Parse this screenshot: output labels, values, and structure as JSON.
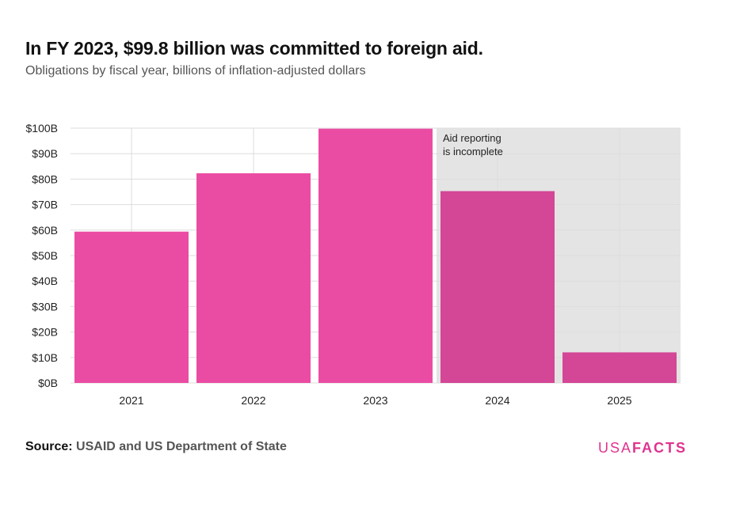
{
  "header": {
    "title": "In FY 2023, $99.8 billion was committed to foreign aid.",
    "subtitle": "Obligations by fiscal year, billions of inflation-adjusted dollars"
  },
  "annotation": {
    "line1": "Aid reporting",
    "line2": "is incomplete"
  },
  "footer": {
    "source_label": "Source:",
    "source_text": "USAID and US Department of State",
    "logo_part1": "USA",
    "logo_part2": "FACTS"
  },
  "colors": {
    "bar_complete": "#eb4ca3",
    "bar_incomplete": "#d44696",
    "incomplete_shade": "#e4e4e4",
    "grid": "#dddddd",
    "brand": "#e0338f"
  },
  "chart_data": {
    "type": "bar",
    "categories": [
      "2021",
      "2022",
      "2023",
      "2024",
      "2025"
    ],
    "values": [
      59.4,
      82.3,
      99.8,
      75.3,
      12.0
    ],
    "incomplete_from": "2024",
    "ylim": [
      0,
      100
    ],
    "yticks": [
      0,
      10,
      20,
      30,
      40,
      50,
      60,
      70,
      80,
      90,
      100
    ],
    "ytick_labels": [
      "$0B",
      "$10B",
      "$20B",
      "$30B",
      "$40B",
      "$50B",
      "$60B",
      "$70B",
      "$80B",
      "$90B",
      "$100B"
    ],
    "grid": true,
    "xlabel": "",
    "ylabel": ""
  }
}
